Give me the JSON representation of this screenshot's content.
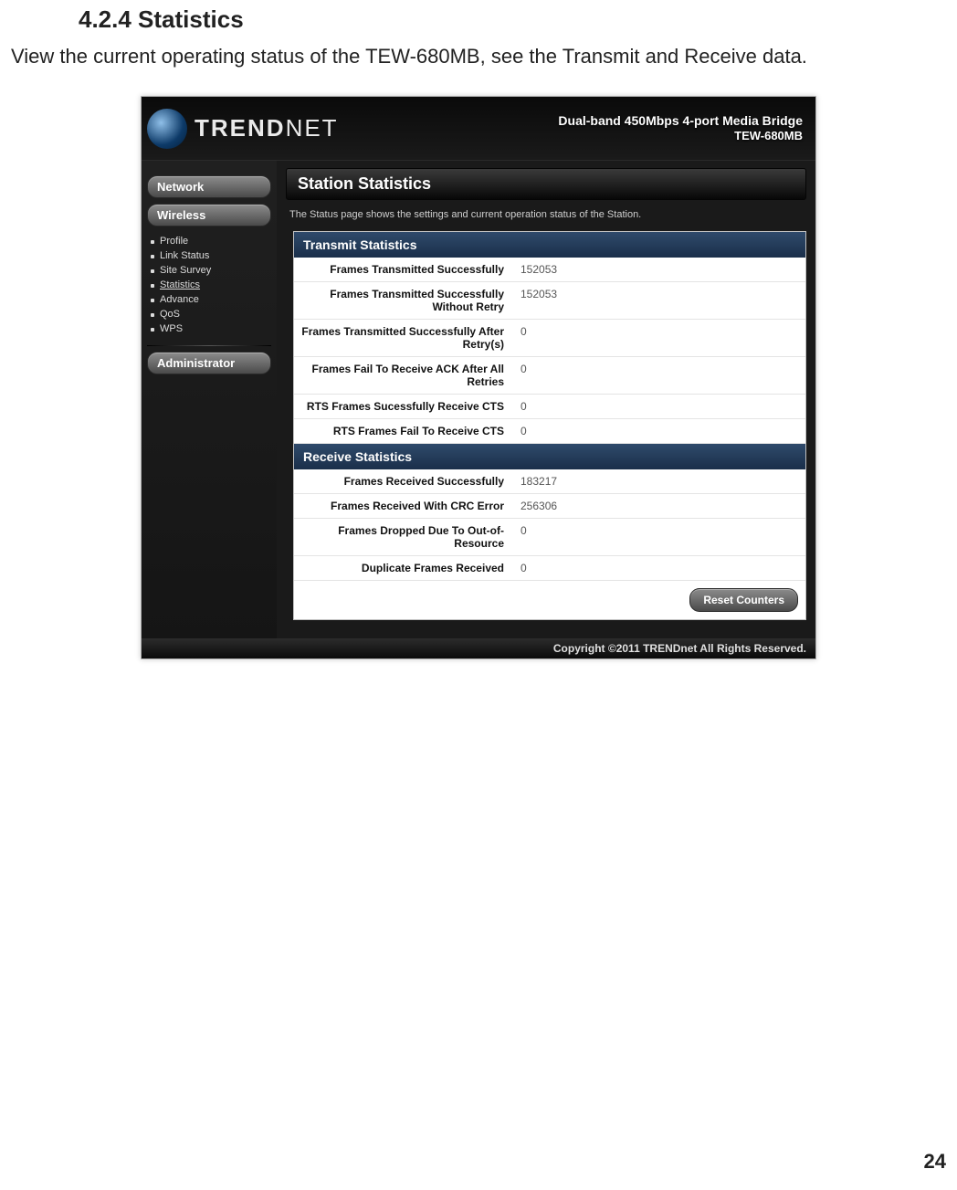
{
  "doc": {
    "heading": "4.2.4  Statistics",
    "body": "View the current operating status of the TEW-680MB, see the Transmit and Receive data.",
    "page_number": "24"
  },
  "product": {
    "brand_left": "TREND",
    "brand_right": "NET",
    "tagline1": "Dual-band 450Mbps 4-port Media Bridge",
    "tagline2": "TEW-680MB"
  },
  "nav": {
    "network_label": "Network",
    "wireless_label": "Wireless",
    "admin_label": "Administrator",
    "wireless_items": {
      "profile": "Profile",
      "link_status": "Link Status",
      "site_survey": "Site Survey",
      "statistics": "Statistics",
      "advance": "Advance",
      "qos": "QoS",
      "wps": "WPS"
    }
  },
  "main": {
    "title": "Station Statistics",
    "subtitle": "The Status page shows the settings and current operation status of the Station.",
    "transmit_header": "Transmit Statistics",
    "receive_header": "Receive Statistics",
    "reset_label": "Reset Counters"
  },
  "transmit": [
    {
      "label": "Frames Transmitted Successfully",
      "value": "152053"
    },
    {
      "label": "Frames Transmitted Successfully Without Retry",
      "value": "152053"
    },
    {
      "label": "Frames Transmitted Successfully After Retry(s)",
      "value": "0"
    },
    {
      "label": "Frames Fail To Receive ACK After All Retries",
      "value": "0"
    },
    {
      "label": "RTS Frames Sucessfully Receive CTS",
      "value": "0"
    },
    {
      "label": "RTS Frames Fail To Receive CTS",
      "value": "0"
    }
  ],
  "receive": [
    {
      "label": "Frames Received Successfully",
      "value": "183217"
    },
    {
      "label": "Frames Received With CRC Error",
      "value": "256306"
    },
    {
      "label": "Frames Dropped Due To Out-of-Resource",
      "value": "0"
    },
    {
      "label": "Duplicate Frames Received",
      "value": "0"
    }
  ],
  "footer": {
    "copyright": "Copyright ©2011 TRENDnet All Rights Reserved."
  },
  "colors": {
    "page_bg": "#ffffff",
    "shot_border": "#b0b0b0",
    "panel_hdr_bg_top": "#2f4a6b",
    "panel_hdr_bg_bot": "#1a2f4a",
    "title_bg_top": "#3a3a3a",
    "title_bg_bot": "#080808",
    "pill_bg_top": "#8c8c8c",
    "pill_bg_bot": "#4a4a4a",
    "row_border": "#e4e4e4"
  }
}
